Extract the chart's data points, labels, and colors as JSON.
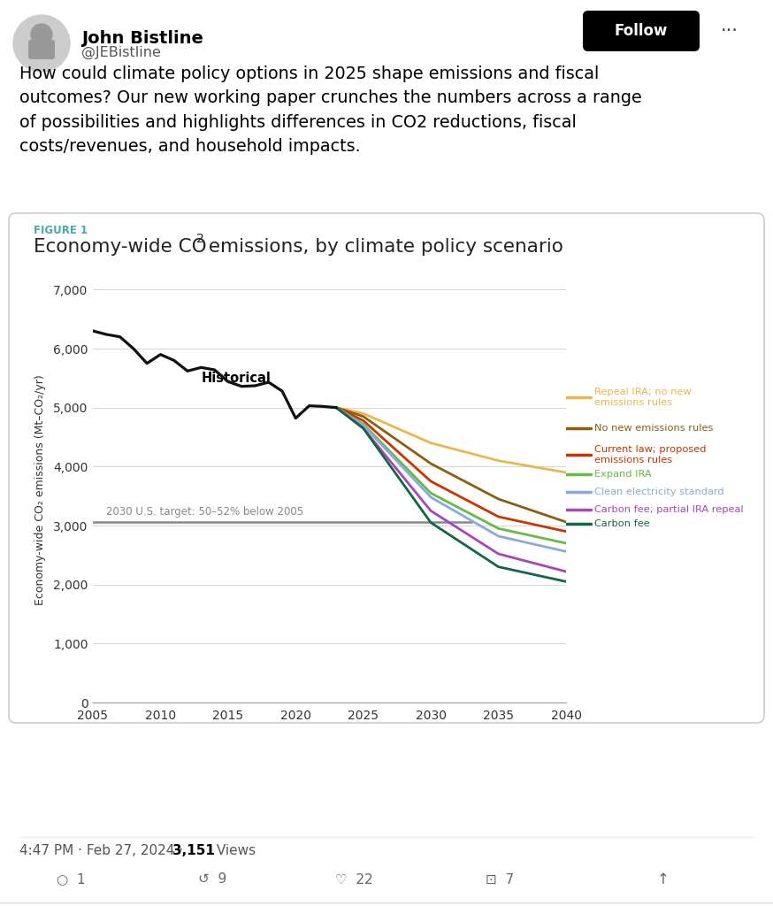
{
  "figure_label": "FIGURE 1",
  "title_part1": "Economy-wide CO",
  "title_sub": "2",
  "title_part2": " emissions, by climate policy scenario",
  "ylabel": "Economy-wide CO₂ emissions (Mt–CO₂/yr)",
  "xlabel_ticks": [
    2005,
    2010,
    2015,
    2020,
    2025,
    2030,
    2035,
    2040
  ],
  "ylim": [
    0,
    7200
  ],
  "yticks": [
    0,
    1000,
    2000,
    3000,
    4000,
    5000,
    6000,
    7000
  ],
  "historical_label": "Historical",
  "target_label": "2030 U.S. target: 50–52% below 2005",
  "target_value": 3060,
  "historical": {
    "years": [
      2005,
      2006,
      2007,
      2008,
      2009,
      2010,
      2011,
      2012,
      2013,
      2014,
      2015,
      2016,
      2017,
      2018,
      2019,
      2020,
      2021,
      2022,
      2023
    ],
    "values": [
      6300,
      6240,
      6200,
      6000,
      5750,
      5900,
      5800,
      5620,
      5680,
      5640,
      5440,
      5360,
      5370,
      5430,
      5280,
      4820,
      5030,
      5020,
      5000
    ]
  },
  "scenarios": [
    {
      "name": "Repeal IRA; no new\nemissions rules",
      "color": "#E8B84B",
      "years": [
        2023,
        2025,
        2030,
        2035,
        2040
      ],
      "values": [
        5000,
        4900,
        4400,
        4100,
        3900
      ]
    },
    {
      "name": "No new emissions rules",
      "color": "#8B5E10",
      "years": [
        2023,
        2025,
        2030,
        2035,
        2040
      ],
      "values": [
        5000,
        4850,
        4050,
        3450,
        3060
      ]
    },
    {
      "name": "Current law; proposed\nemissions rules",
      "color": "#CC3300",
      "years": [
        2023,
        2025,
        2030,
        2035,
        2040
      ],
      "values": [
        5000,
        4780,
        3750,
        3150,
        2900
      ]
    },
    {
      "name": "Expand IRA",
      "color": "#66BB44",
      "years": [
        2023,
        2025,
        2030,
        2035,
        2040
      ],
      "values": [
        5000,
        4720,
        3550,
        2950,
        2700
      ]
    },
    {
      "name": "Clean electricity standard",
      "color": "#88AADD",
      "years": [
        2023,
        2025,
        2030,
        2035,
        2040
      ],
      "values": [
        5000,
        4700,
        3480,
        2820,
        2560
      ]
    },
    {
      "name": "Carbon fee; partial IRA repeal",
      "color": "#AA44BB",
      "years": [
        2023,
        2025,
        2030,
        2035,
        2040
      ],
      "values": [
        5000,
        4650,
        3250,
        2520,
        2220
      ]
    },
    {
      "name": "Carbon fee",
      "color": "#116644",
      "years": [
        2023,
        2025,
        2030,
        2035,
        2040
      ],
      "values": [
        5000,
        4650,
        3050,
        2300,
        2050
      ]
    }
  ],
  "bg_color": "#FFFFFF",
  "grid_color": "#CCCCCC",
  "figure_label_color": "#44AAAA",
  "title_color": "#222222",
  "historical_color": "#111111",
  "target_line_color": "#888888",
  "header_name": "John Bistline",
  "header_handle": "@JEBistline",
  "tweet_text": "How could climate policy options in 2025 shape emissions and fiscal\noutcomes? Our new working paper crunches the numbers across a range\nof possibilities and highlights differences in CO2 reductions, fiscal\ncosts/revenues, and household impacts.",
  "timestamp": "4:47 PM · Feb 27, 2024 · ",
  "views_bold": "3,151",
  "views_label": " Views"
}
